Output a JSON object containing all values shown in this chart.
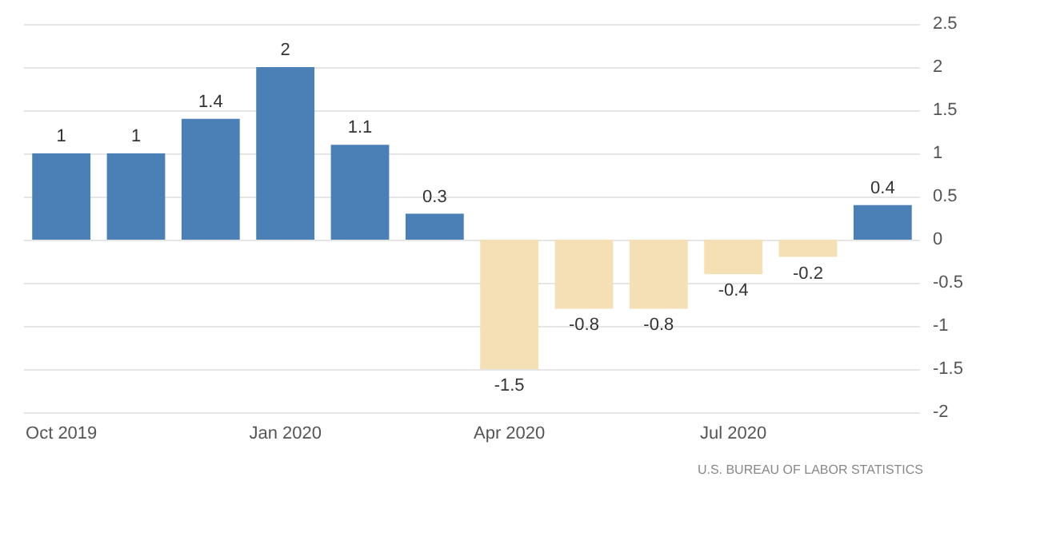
{
  "chart_data": {
    "type": "bar",
    "categories": [
      "Oct 2019",
      null,
      null,
      "Jan 2020",
      null,
      null,
      "Apr 2020",
      null,
      null,
      "Jul 2020",
      null,
      null
    ],
    "values": [
      1,
      1,
      1.4,
      2,
      1.1,
      0.3,
      -1.5,
      -0.8,
      -0.8,
      -0.4,
      -0.2,
      0.4
    ],
    "colors": [
      "#4a80b6",
      "#4a80b6",
      "#4a80b6",
      "#4a80b6",
      "#4a80b6",
      "#4a80b6",
      "#f5dfb5",
      "#f5dfb5",
      "#f5dfb5",
      "#f5dfb5",
      "#f5dfb5",
      "#4a80b6"
    ],
    "ylim": [
      -2,
      2.5
    ],
    "yticks": [
      -2,
      -1.5,
      -1,
      -0.5,
      0,
      0.5,
      1,
      1.5,
      2,
      2.5
    ],
    "grid": "y",
    "data_labels": true,
    "annotations": [
      "U.S. BUREAU OF LABOR STATISTICS"
    ]
  }
}
